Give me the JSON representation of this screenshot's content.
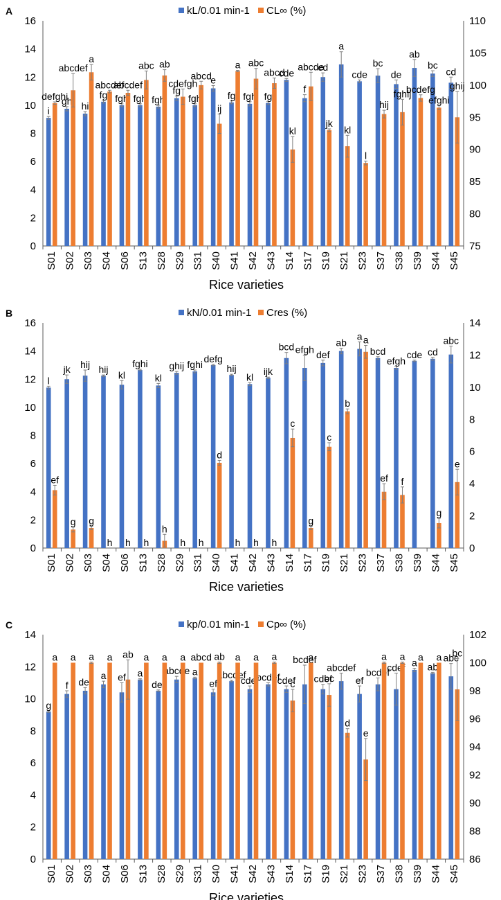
{
  "colors": {
    "blue": "#4472C4",
    "orange": "#ED7D31",
    "axis": "#595959",
    "error": "#7f7f7f"
  },
  "chart_data": [
    {
      "type": "bar",
      "panel": "A",
      "xlabel": "Rice varieties",
      "categories": [
        "S01",
        "S02",
        "S03",
        "S04",
        "S06",
        "S13",
        "S28",
        "S29",
        "S31",
        "S40",
        "S41",
        "S42",
        "S43",
        "S14",
        "S17",
        "S19",
        "S21",
        "S23",
        "S37",
        "S38",
        "S39",
        "S44",
        "S45"
      ],
      "left_axis": {
        "min": 0,
        "max": 16,
        "ticks": [
          "0",
          "2",
          "4",
          "6",
          "8",
          "10",
          "12",
          "14",
          "16"
        ]
      },
      "right_axis": {
        "min": 75,
        "max": 110,
        "ticks": [
          "75",
          "80",
          "85",
          "90",
          "95",
          "100",
          "105",
          "110"
        ]
      },
      "series": [
        {
          "name": "kL/0.01 min-1",
          "axis": "left",
          "color": "#4472C4",
          "values": [
            9.1,
            9.75,
            9.4,
            10.25,
            10.0,
            10.0,
            9.9,
            10.5,
            10.0,
            11.2,
            10.2,
            10.1,
            10.15,
            11.8,
            10.5,
            12.0,
            12.9,
            11.7,
            12.1,
            11.5,
            12.65,
            12.25,
            11.6
          ],
          "errors": [
            0.1,
            0.15,
            0.15,
            0.1,
            0.1,
            0.1,
            0.1,
            0.15,
            0.1,
            0.2,
            0.1,
            0.15,
            0.1,
            0.1,
            0.25,
            0.3,
            0.9,
            0.1,
            0.5,
            0.3,
            0.6,
            0.2,
            0.4
          ],
          "letters": [
            "i",
            "gh",
            "hi",
            "fg",
            "fgh",
            "fgh",
            "fgh",
            "fg",
            "fgh",
            "e",
            "fg",
            "fgh",
            "fg",
            "cde",
            "f",
            "cd",
            "a",
            "cde",
            "bc",
            "de",
            "ab",
            "bc",
            "cd"
          ]
        },
        {
          "name": "CL∞ (%)",
          "axis": "right",
          "color": "#ED7D31",
          "values": [
            97.2,
            99.2,
            102.0,
            99.0,
            98.8,
            100.8,
            101.5,
            98.2,
            100.0,
            94.0,
            102.2,
            101.0,
            100.3,
            90.0,
            99.8,
            93.0,
            90.5,
            87.9,
            95.5,
            95.8,
            98.0,
            96.5,
            95.0
          ],
          "errors": [
            0.2,
            2.6,
            1.2,
            0.2,
            0.4,
            1.4,
            0.9,
            1.2,
            0.6,
            1.5,
            0.1,
            1.6,
            0.8,
            2.0,
            2.2,
            0.2,
            1.7,
            0.3,
            0.6,
            2.0,
            0.5,
            0.3,
            4.0
          ],
          "letters": [
            "defghi",
            "abcdef",
            "a",
            "abcdef",
            "abcdef",
            "abc",
            "ab",
            "cdefgh",
            "abcd",
            "ij",
            "a",
            "abc",
            "abcd",
            "kl",
            "abcde",
            "jk",
            "kl",
            "l",
            "hij",
            "fghij",
            "bcdefg",
            "efghi",
            "ghij"
          ]
        }
      ]
    },
    {
      "type": "bar",
      "panel": "B",
      "xlabel": "Rice varieties",
      "categories": [
        "S01",
        "S02",
        "S03",
        "S04",
        "S06",
        "S13",
        "S28",
        "S29",
        "S31",
        "S40",
        "S41",
        "S42",
        "S43",
        "S14",
        "S17",
        "S19",
        "S21",
        "S23",
        "S37",
        "S38",
        "S39",
        "S44",
        "S45"
      ],
      "left_axis": {
        "min": 0,
        "max": 16,
        "ticks": [
          "0",
          "2",
          "4",
          "6",
          "8",
          "10",
          "12",
          "14",
          "16"
        ]
      },
      "right_axis": {
        "min": 0,
        "max": 14,
        "ticks": [
          "0",
          "2",
          "4",
          "6",
          "8",
          "10",
          "12",
          "14"
        ]
      },
      "series": [
        {
          "name": "kN/0.01 min-1",
          "axis": "left",
          "color": "#4472C4",
          "values": [
            11.4,
            12.0,
            12.25,
            12.25,
            11.6,
            12.65,
            11.55,
            12.45,
            12.55,
            13.0,
            12.3,
            11.65,
            12.1,
            13.5,
            12.8,
            13.15,
            14.0,
            14.15,
            13.5,
            12.8,
            13.3,
            13.45,
            13.75
          ],
          "errors": [
            0.1,
            0.3,
            0.4,
            0.05,
            0.3,
            0.05,
            0.15,
            0.1,
            0.1,
            0.05,
            0.05,
            0.1,
            0.05,
            0.4,
            0.9,
            0.2,
            0.2,
            0.5,
            0.1,
            0.1,
            0.05,
            0.1,
            0.6
          ],
          "letters": [
            "l",
            "jk",
            "hij",
            "hij",
            "kl",
            "fghi",
            "kl",
            "ghij",
            "fghi",
            "defg",
            "hij",
            "kl",
            "ijk",
            "bcd",
            "efgh",
            "def",
            "ab",
            "a",
            "bcd",
            "efgh",
            "cde",
            "cd",
            "abc"
          ]
        },
        {
          "name": "Cres (%)",
          "axis": "right",
          "color": "#ED7D31",
          "values": [
            3.6,
            1.15,
            1.25,
            0,
            0,
            0,
            0.45,
            0,
            0,
            5.3,
            0,
            0,
            0,
            6.85,
            1.25,
            6.3,
            8.5,
            12.2,
            3.5,
            3.3,
            0,
            1.55,
            4.1
          ],
          "errors": [
            0.3,
            0.15,
            0.1,
            0,
            0,
            0,
            0.4,
            0,
            0,
            0.15,
            0,
            0,
            0,
            0.55,
            0.1,
            0.25,
            0.15,
            0.4,
            0.5,
            0.5,
            0,
            0.3,
            0.8
          ],
          "letters": [
            "ef",
            "g",
            "g",
            "h",
            "h",
            "h",
            "h",
            "h",
            "h",
            "d",
            "h",
            "h",
            "h",
            "c",
            "g",
            "c",
            "b",
            "a",
            "ef",
            "f",
            "",
            "g",
            "e"
          ]
        }
      ]
    },
    {
      "type": "bar",
      "panel": "C",
      "xlabel": "Rice varieties",
      "categories": [
        "S01",
        "S02",
        "S03",
        "S04",
        "S06",
        "S13",
        "S28",
        "S29",
        "S31",
        "S40",
        "S41",
        "S42",
        "S43",
        "S14",
        "S17",
        "S19",
        "S21",
        "S23",
        "S37",
        "S38",
        "S39",
        "S44",
        "S45"
      ],
      "left_axis": {
        "min": 0,
        "max": 14,
        "ticks": [
          "0",
          "2",
          "4",
          "6",
          "8",
          "10",
          "12",
          "14"
        ]
      },
      "right_axis": {
        "min": 86,
        "max": 102,
        "ticks": [
          "86",
          "88",
          "90",
          "92",
          "94",
          "96",
          "98",
          "100",
          "102"
        ]
      },
      "series": [
        {
          "name": "kp/0.01 min-1",
          "axis": "left",
          "color": "#4472C4",
          "values": [
            9.2,
            10.3,
            10.5,
            10.9,
            10.4,
            11.2,
            10.5,
            11.2,
            11.3,
            10.4,
            11.1,
            10.6,
            10.9,
            10.6,
            10.9,
            10.6,
            11.1,
            10.3,
            10.9,
            10.6,
            11.8,
            11.6,
            11.4
          ],
          "errors": [
            0.05,
            0.2,
            0.2,
            0.2,
            0.6,
            0.05,
            0.05,
            0.2,
            0.05,
            0.2,
            0.05,
            0.2,
            0.1,
            0.2,
            1.2,
            0.3,
            0.5,
            0.5,
            0.4,
            1.0,
            0.1,
            0.05,
            0.8
          ],
          "letters": [
            "g",
            "f",
            "def",
            "a",
            "ef",
            "a",
            "def",
            "abcde",
            "a",
            "ef",
            "abcdef",
            "cdef",
            "bcdef",
            "cdef",
            "bcdef",
            "cdef",
            "abcdef",
            "ef",
            "bcdef",
            "cdef",
            "a",
            "ab",
            "abc"
          ]
        },
        {
          "name": "Cp∞ (%)",
          "axis": "right",
          "color": "#ED7D31",
          "values": [
            100,
            100,
            100,
            100,
            98.8,
            100,
            100,
            100,
            100,
            100,
            100,
            100,
            100,
            97.3,
            100,
            97.7,
            95.0,
            93.1,
            100,
            100,
            100,
            100,
            98.1
          ],
          "errors": [
            0,
            0,
            0.05,
            0,
            1.4,
            0,
            0,
            0,
            0,
            0.05,
            0,
            0,
            0.05,
            0.8,
            0,
            0.8,
            0.3,
            1.5,
            0.05,
            0.05,
            0,
            0,
            2.2
          ],
          "letters": [
            "a",
            "a",
            "a",
            "a",
            "ab",
            "a",
            "a",
            "a",
            "abcd",
            "ab",
            "a",
            "a",
            "a",
            "c",
            "a",
            "bc",
            "d",
            "e",
            "a",
            "a",
            "a",
            "a",
            "bc"
          ]
        }
      ]
    }
  ]
}
